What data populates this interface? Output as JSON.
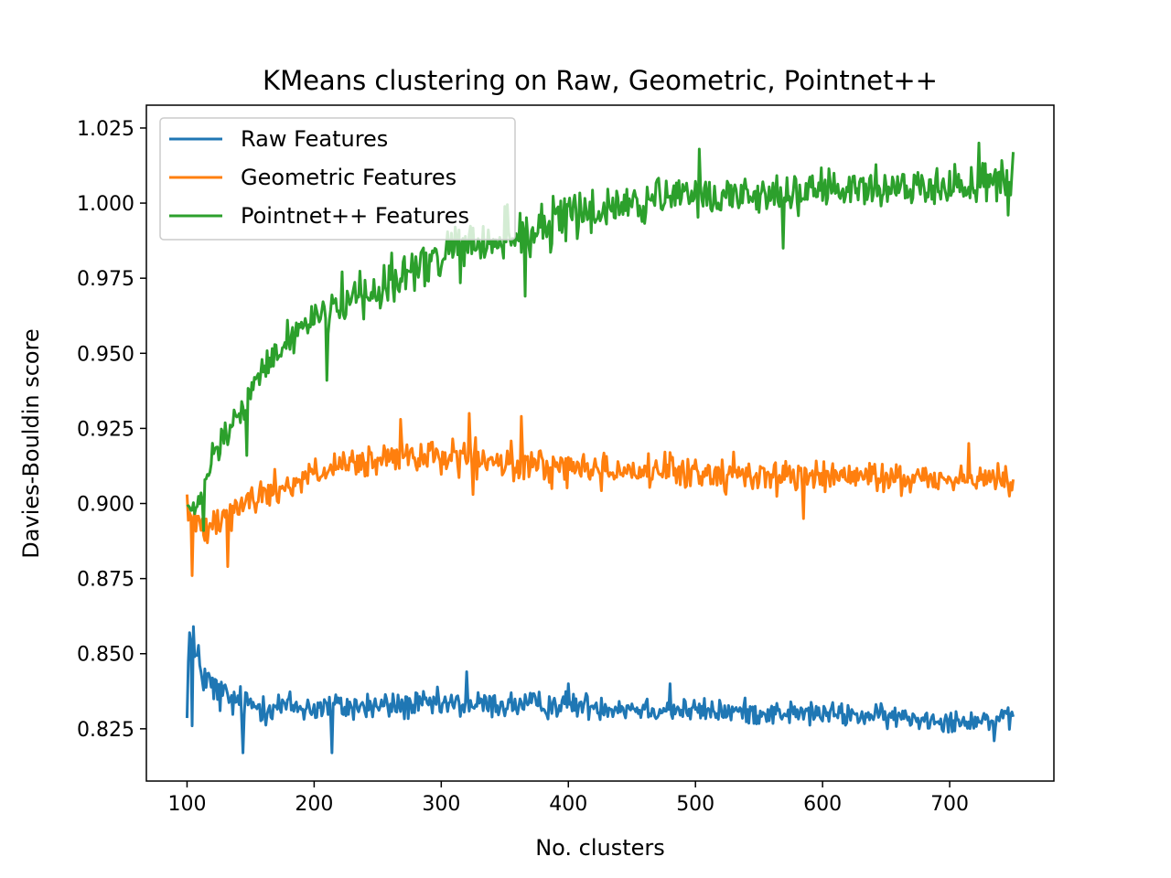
{
  "chart_data": {
    "type": "line",
    "title": "KMeans clustering on Raw, Geometric, Pointnet++",
    "xlabel": "No. clusters",
    "ylabel": "Davies-Bouldin score",
    "xlim": [
      68,
      782
    ],
    "ylim": [
      0.8076,
      1.0326
    ],
    "x_ticks": [
      100,
      200,
      300,
      400,
      500,
      600,
      700
    ],
    "y_ticks": [
      0.825,
      0.85,
      0.875,
      0.9,
      0.925,
      0.95,
      0.975,
      1.0,
      1.025
    ],
    "y_tick_labels": [
      "0.825",
      "0.850",
      "0.875",
      "0.900",
      "0.925",
      "0.950",
      "0.975",
      "1.000",
      "1.025"
    ],
    "grid": false,
    "legend_position": "top-left",
    "x_range": [
      100,
      750
    ],
    "x_step": 1,
    "series": [
      {
        "name": "Raw Features",
        "color": "#1f77b4",
        "trend": [
          [
            100,
            0.836
          ],
          [
            102,
            0.856
          ],
          [
            104,
            0.85
          ],
          [
            120,
            0.838
          ],
          [
            140,
            0.833
          ],
          [
            200,
            0.832
          ],
          [
            300,
            0.833
          ],
          [
            400,
            0.833
          ],
          [
            500,
            0.831
          ],
          [
            600,
            0.83
          ],
          [
            700,
            0.828
          ],
          [
            750,
            0.828
          ]
        ],
        "noise": [
          [
            100,
            0.007
          ],
          [
            150,
            0.005
          ],
          [
            300,
            0.004
          ],
          [
            750,
            0.003
          ]
        ],
        "points": [
          [
            102,
            0.857
          ],
          [
            104,
            0.826
          ],
          [
            105,
            0.859
          ],
          [
            140,
            0.836
          ],
          [
            144,
            0.817
          ],
          [
            214,
            0.817
          ],
          [
            320,
            0.844
          ],
          [
            400,
            0.84
          ],
          [
            480,
            0.84
          ],
          [
            702,
            0.824
          ],
          [
            735,
            0.821
          ],
          [
            750,
            0.829
          ]
        ]
      },
      {
        "name": "Geometric Features",
        "color": "#ff7f0e",
        "trend": [
          [
            100,
            0.897
          ],
          [
            110,
            0.892
          ],
          [
            120,
            0.895
          ],
          [
            150,
            0.901
          ],
          [
            200,
            0.91
          ],
          [
            250,
            0.914
          ],
          [
            300,
            0.916
          ],
          [
            350,
            0.913
          ],
          [
            400,
            0.912
          ],
          [
            450,
            0.911
          ],
          [
            500,
            0.91
          ],
          [
            600,
            0.909
          ],
          [
            750,
            0.908
          ]
        ],
        "noise": [
          [
            100,
            0.005
          ],
          [
            200,
            0.005
          ],
          [
            400,
            0.005
          ],
          [
            750,
            0.004
          ]
        ],
        "points": [
          [
            100,
            0.903
          ],
          [
            104,
            0.876
          ],
          [
            132,
            0.879
          ],
          [
            268,
            0.928
          ],
          [
            322,
            0.93
          ],
          [
            325,
            0.903
          ],
          [
            363,
            0.929
          ],
          [
            585,
            0.895
          ],
          [
            715,
            0.92
          ],
          [
            750,
            0.908
          ]
        ]
      },
      {
        "name": "Pointnet++ Features",
        "color": "#2ca02c",
        "trend": [
          [
            100,
            0.899
          ],
          [
            105,
            0.897
          ],
          [
            110,
            0.9
          ],
          [
            120,
            0.915
          ],
          [
            140,
            0.929
          ],
          [
            160,
            0.944
          ],
          [
            180,
            0.955
          ],
          [
            200,
            0.963
          ],
          [
            250,
            0.972
          ],
          [
            300,
            0.982
          ],
          [
            350,
            0.988
          ],
          [
            400,
            0.995
          ],
          [
            450,
            1.0
          ],
          [
            500,
            1.002
          ],
          [
            600,
            1.004
          ],
          [
            700,
            1.006
          ],
          [
            750,
            1.008
          ]
        ],
        "noise": [
          [
            100,
            0.003
          ],
          [
            200,
            0.007
          ],
          [
            350,
            0.008
          ],
          [
            500,
            0.006
          ],
          [
            750,
            0.005
          ]
        ],
        "points": [
          [
            100,
            0.899
          ],
          [
            113,
            0.891
          ],
          [
            147,
            0.916
          ],
          [
            210,
            0.941
          ],
          [
            366,
            0.969
          ],
          [
            503,
            1.018
          ],
          [
            569,
            0.985
          ],
          [
            723,
            1.02
          ],
          [
            746,
            0.996
          ],
          [
            750,
            1.017
          ]
        ]
      }
    ]
  }
}
